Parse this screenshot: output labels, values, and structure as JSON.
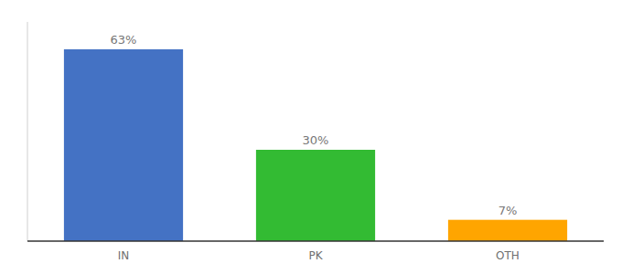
{
  "chart_data": {
    "type": "bar",
    "categories": [
      "IN",
      "PK",
      "OTH"
    ],
    "values": [
      63,
      30,
      7
    ],
    "value_labels": [
      "63%",
      "30%",
      "7%"
    ],
    "colors": [
      "#4472C4",
      "#33BB33",
      "#FFA500"
    ],
    "ylim": [
      0,
      72
    ],
    "data_labels": true,
    "tick_labels": "x",
    "grid": false
  }
}
